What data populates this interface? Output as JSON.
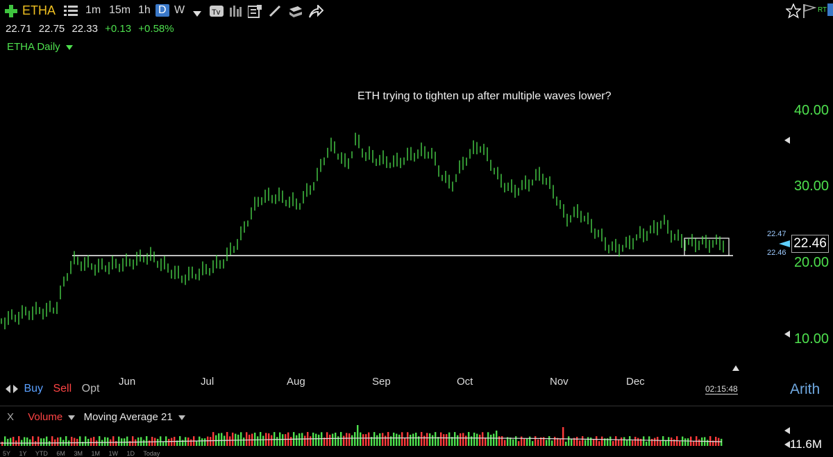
{
  "toolbar": {
    "symbol": "ETHA",
    "timeframes": [
      "1m",
      "15m",
      "1h",
      "D",
      "W"
    ],
    "active_timeframe": "D",
    "rt_label": "RT"
  },
  "quote": {
    "open": "22.71",
    "high": "22.75",
    "low": "22.33",
    "change": "+0.13",
    "change_pct": "+0.58%"
  },
  "chart": {
    "title": "ETHA Daily",
    "annotation": "ETH trying to tighten up after multiple waves lower?",
    "price_ticks": [
      "40.00",
      "30.00",
      "20.00",
      "10.00"
    ],
    "months": [
      "Jun",
      "Jul",
      "Aug",
      "Sep",
      "Oct",
      "Nov",
      "Dec"
    ],
    "last_price": "22.46",
    "level_high": "22.47",
    "level_low": "22.46",
    "scale_mode": "Arith",
    "clock": "02:15:48",
    "colors": {
      "up": "#4ee04e",
      "down": "#ff3b3b",
      "accent": "#3a78c8"
    }
  },
  "trade": {
    "buy": "Buy",
    "sell": "Sell",
    "opt": "Opt"
  },
  "volume": {
    "close": "X",
    "label": "Volume",
    "study": "Moving Average 21",
    "value": "11.6M"
  },
  "ranges": [
    "5Y",
    "1Y",
    "YTD",
    "6M",
    "3M",
    "1M",
    "1W",
    "1D",
    "Today"
  ]
}
